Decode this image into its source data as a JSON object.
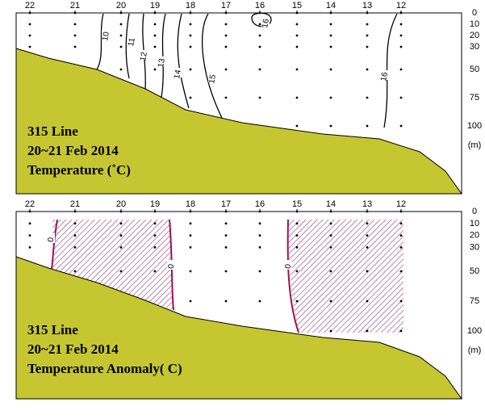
{
  "panels": [
    {
      "stations": [
        "22",
        "21",
        "20",
        "19",
        "18",
        "17",
        "16",
        "15",
        "14",
        "13",
        "12"
      ],
      "depths": [
        0,
        10,
        20,
        30,
        50,
        75,
        100
      ],
      "unit": "(m)",
      "title_lines": [
        "315 Line",
        "20~21 Feb 2014",
        "Temperature (˚C)"
      ],
      "contour_labels": [
        "10",
        "11",
        "12",
        "13",
        "14",
        "15",
        "16",
        "16"
      ]
    },
    {
      "stations": [
        "22",
        "21",
        "20",
        "19",
        "18",
        "17",
        "16",
        "15",
        "14",
        "13",
        "12"
      ],
      "depths": [
        0,
        10,
        20,
        30,
        50,
        75,
        100
      ],
      "unit": "(m)",
      "title_lines": [
        "315 Line",
        "20~21 Feb 2014",
        "Temperature Anomaly( C)"
      ],
      "contour_labels": [
        "0",
        "0",
        "0"
      ]
    }
  ]
}
